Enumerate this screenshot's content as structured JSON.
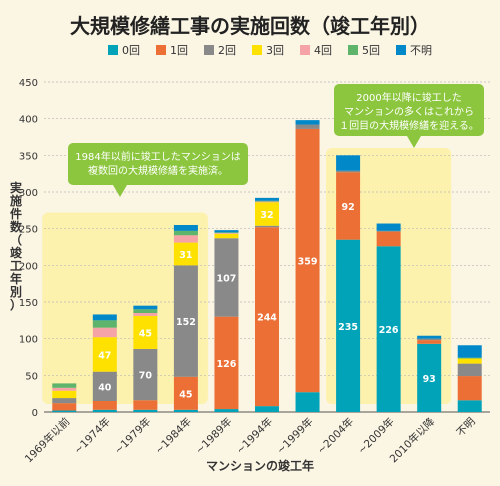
{
  "chart_data": {
    "type": "bar",
    "stacked": true,
    "title": "大規模修繕工事の実施回数（竣工年別）",
    "xlabel": "マンションの竣工年",
    "ylabel": "実施件数（竣工年別）",
    "ylim": [
      0,
      450
    ],
    "yticks": [
      0,
      50,
      100,
      150,
      200,
      250,
      300,
      350,
      400,
      450
    ],
    "grid": true,
    "legend_position": "top",
    "categories": [
      "1969年以前",
      "~1974年",
      "~1979年",
      "~1984年",
      "~1989年",
      "~1994年",
      "~1999年",
      "~2004年",
      "~2009年",
      "2010年以降",
      "不明"
    ],
    "series": [
      {
        "name": "0回",
        "color": "#00a3b7",
        "values": [
          2,
          3,
          3,
          3,
          4,
          8,
          27,
          235,
          226,
          93,
          16
        ]
      },
      {
        "name": "1回",
        "color": "#ec6f36",
        "values": [
          10,
          12,
          13,
          45,
          126,
          244,
          359,
          92,
          20,
          5,
          33
        ]
      },
      {
        "name": "2回",
        "color": "#898989",
        "values": [
          7,
          40,
          70,
          152,
          107,
          2,
          6,
          2,
          1,
          2,
          17
        ]
      },
      {
        "name": "3回",
        "color": "#ffe100",
        "values": [
          10,
          47,
          45,
          31,
          6,
          32,
          0,
          0,
          0,
          0,
          7
        ]
      },
      {
        "name": "4回",
        "color": "#f5a3a6",
        "values": [
          4,
          13,
          4,
          10,
          1,
          1,
          0,
          0,
          0,
          0,
          0
        ]
      },
      {
        "name": "5回",
        "color": "#5eb46b",
        "values": [
          6,
          10,
          5,
          6,
          1,
          1,
          0,
          0,
          0,
          0,
          1
        ]
      },
      {
        "name": "不明",
        "color": "#0088c9",
        "values": [
          0,
          8,
          5,
          8,
          3,
          4,
          6,
          21,
          10,
          4,
          17
        ]
      }
    ],
    "data_labels": [
      {
        "category": "~1974年",
        "series": "2回",
        "text": "40"
      },
      {
        "category": "~1974年",
        "series": "3回",
        "text": "47"
      },
      {
        "category": "~1979年",
        "series": "2回",
        "text": "70"
      },
      {
        "category": "~1979年",
        "series": "3回",
        "text": "45"
      },
      {
        "category": "~1984年",
        "series": "1回",
        "text": "45"
      },
      {
        "category": "~1984年",
        "series": "2回",
        "text": "152"
      },
      {
        "category": "~1984年",
        "series": "3回",
        "text": "31"
      },
      {
        "category": "~1989年",
        "series": "1回",
        "text": "126"
      },
      {
        "category": "~1989年",
        "series": "2回",
        "text": "107"
      },
      {
        "category": "~1994年",
        "series": "1回",
        "text": "244"
      },
      {
        "category": "~1994年",
        "series": "3回",
        "text": "32"
      },
      {
        "category": "~1999年",
        "series": "1回",
        "text": "359"
      },
      {
        "category": "~2004年",
        "series": "0回",
        "text": "235"
      },
      {
        "category": "~2004年",
        "series": "1回",
        "text": "92"
      },
      {
        "category": "~2009年",
        "series": "0回",
        "text": "226"
      },
      {
        "category": "2010年以降",
        "series": "0回",
        "text": "93"
      }
    ],
    "annotations": [
      {
        "id": "callout-left",
        "text": [
          "1984年以前に竣工したマンションは",
          "複数回の大規模修繕を実施済。"
        ]
      },
      {
        "id": "callout-right",
        "text": [
          "2000年以降に竣工した",
          "マンションの多くはこれから",
          "１回目の大規模修繕を迎える。"
        ]
      }
    ],
    "highlights": [
      {
        "id": "highlight-left",
        "from_category": "1969年以前",
        "to_category": "~1984年"
      },
      {
        "id": "highlight-right",
        "from_category": "~2004年",
        "to_category": "2010年以降"
      }
    ]
  }
}
